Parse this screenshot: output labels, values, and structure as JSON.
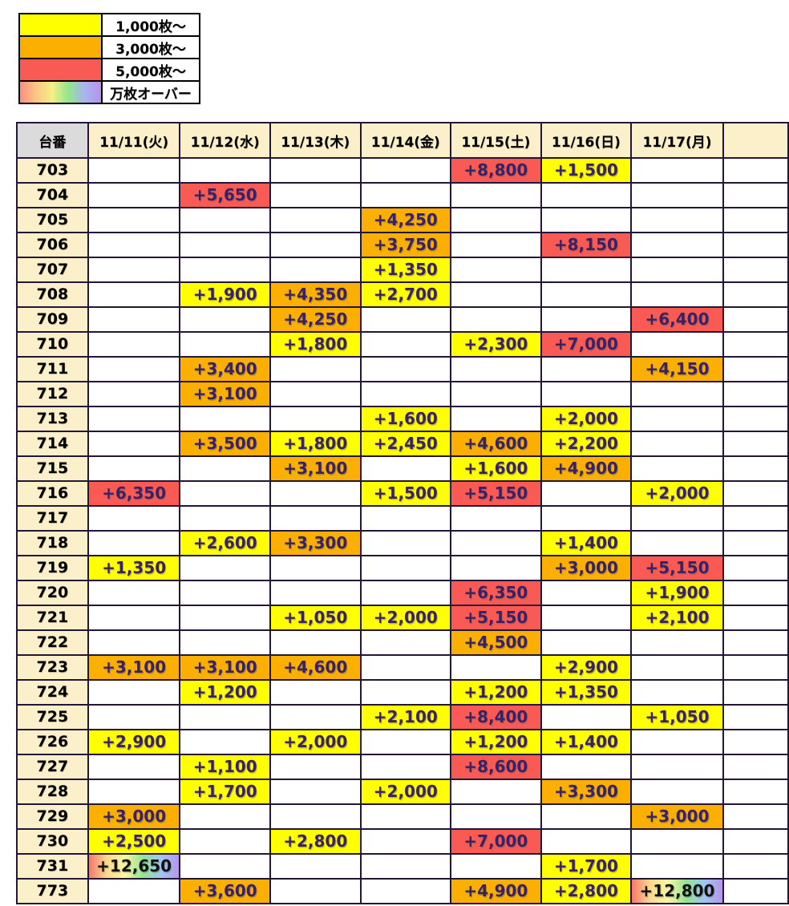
{
  "colors": {
    "tier_1000": "#ffff00",
    "tier_3000": "#fbaf00",
    "tier_5000": "#fa5a54",
    "rainbow_stops": [
      "#f8776d",
      "#fbd98d",
      "#f9f7a0",
      "#93e493",
      "#9ec7f2",
      "#b795ea"
    ],
    "header_cream": "#fcf0cb",
    "machine_header_gray": "#dbdbdb",
    "value_text": "#3a2163",
    "grid_border": "#241636"
  },
  "chart_data": {
    "type": "table",
    "legend": [
      {
        "label": "1,000枚〜",
        "tier": "1000",
        "color": "#ffff00"
      },
      {
        "label": "3,000枚〜",
        "tier": "3000",
        "color": "#fbaf00"
      },
      {
        "label": "5,000枚〜",
        "tier": "5000",
        "color": "#fa5a54"
      },
      {
        "label": "万枚オーバー",
        "tier": "10000",
        "color": "rainbow"
      }
    ],
    "columns": [
      "台番",
      "11/11(火)",
      "11/12(水)",
      "11/13(木)",
      "11/14(金)",
      "11/15(土)",
      "11/16(日)",
      "11/17(月)"
    ],
    "rows": [
      {
        "machine": "703",
        "values": [
          null,
          null,
          null,
          null,
          {
            "v": "+8,800",
            "l": "5000"
          },
          {
            "v": "+1,500",
            "l": "1000"
          },
          null
        ]
      },
      {
        "machine": "704",
        "values": [
          null,
          {
            "v": "+5,650",
            "l": "5000"
          },
          null,
          null,
          null,
          null,
          null
        ]
      },
      {
        "machine": "705",
        "values": [
          null,
          null,
          null,
          {
            "v": "+4,250",
            "l": "3000"
          },
          null,
          null,
          null
        ]
      },
      {
        "machine": "706",
        "values": [
          null,
          null,
          null,
          {
            "v": "+3,750",
            "l": "3000"
          },
          null,
          {
            "v": "+8,150",
            "l": "5000"
          },
          null
        ]
      },
      {
        "machine": "707",
        "values": [
          null,
          null,
          null,
          {
            "v": "+1,350",
            "l": "1000"
          },
          null,
          null,
          null
        ]
      },
      {
        "machine": "708",
        "values": [
          null,
          {
            "v": "+1,900",
            "l": "1000"
          },
          {
            "v": "+4,350",
            "l": "3000"
          },
          {
            "v": "+2,700",
            "l": "1000"
          },
          null,
          null,
          null
        ]
      },
      {
        "machine": "709",
        "values": [
          null,
          null,
          {
            "v": "+4,250",
            "l": "3000"
          },
          null,
          null,
          null,
          {
            "v": "+6,400",
            "l": "5000"
          }
        ]
      },
      {
        "machine": "710",
        "values": [
          null,
          null,
          {
            "v": "+1,800",
            "l": "1000"
          },
          null,
          {
            "v": "+2,300",
            "l": "1000"
          },
          {
            "v": "+7,000",
            "l": "5000"
          },
          null
        ]
      },
      {
        "machine": "711",
        "values": [
          null,
          {
            "v": "+3,400",
            "l": "3000"
          },
          null,
          null,
          null,
          null,
          {
            "v": "+4,150",
            "l": "3000"
          }
        ]
      },
      {
        "machine": "712",
        "values": [
          null,
          {
            "v": "+3,100",
            "l": "3000"
          },
          null,
          null,
          null,
          null,
          null
        ]
      },
      {
        "machine": "713",
        "values": [
          null,
          null,
          null,
          {
            "v": "+1,600",
            "l": "1000"
          },
          null,
          {
            "v": "+2,000",
            "l": "1000"
          },
          null
        ]
      },
      {
        "machine": "714",
        "values": [
          null,
          {
            "v": "+3,500",
            "l": "3000"
          },
          {
            "v": "+1,800",
            "l": "1000"
          },
          {
            "v": "+2,450",
            "l": "1000"
          },
          {
            "v": "+4,600",
            "l": "3000"
          },
          {
            "v": "+2,200",
            "l": "1000"
          },
          null
        ]
      },
      {
        "machine": "715",
        "values": [
          null,
          null,
          {
            "v": "+3,100",
            "l": "3000"
          },
          null,
          {
            "v": "+1,600",
            "l": "1000"
          },
          {
            "v": "+4,900",
            "l": "3000"
          },
          null
        ]
      },
      {
        "machine": "716",
        "values": [
          {
            "v": "+6,350",
            "l": "5000"
          },
          null,
          null,
          {
            "v": "+1,500",
            "l": "1000"
          },
          {
            "v": "+5,150",
            "l": "5000"
          },
          null,
          {
            "v": "+2,000",
            "l": "1000"
          }
        ]
      },
      {
        "machine": "717",
        "values": [
          null,
          null,
          null,
          null,
          null,
          null,
          null
        ]
      },
      {
        "machine": "718",
        "values": [
          null,
          {
            "v": "+2,600",
            "l": "1000"
          },
          {
            "v": "+3,300",
            "l": "3000"
          },
          null,
          null,
          {
            "v": "+1,400",
            "l": "1000"
          },
          null
        ]
      },
      {
        "machine": "719",
        "values": [
          {
            "v": "+1,350",
            "l": "1000"
          },
          null,
          null,
          null,
          null,
          {
            "v": "+3,000",
            "l": "3000"
          },
          {
            "v": "+5,150",
            "l": "5000"
          }
        ]
      },
      {
        "machine": "720",
        "values": [
          null,
          null,
          null,
          null,
          {
            "v": "+6,350",
            "l": "5000"
          },
          null,
          {
            "v": "+1,900",
            "l": "1000"
          }
        ]
      },
      {
        "machine": "721",
        "values": [
          null,
          null,
          {
            "v": "+1,050",
            "l": "1000"
          },
          {
            "v": "+2,000",
            "l": "1000"
          },
          {
            "v": "+5,150",
            "l": "5000"
          },
          null,
          {
            "v": "+2,100",
            "l": "1000"
          }
        ]
      },
      {
        "machine": "722",
        "values": [
          null,
          null,
          null,
          null,
          {
            "v": "+4,500",
            "l": "3000"
          },
          null,
          null
        ]
      },
      {
        "machine": "723",
        "values": [
          {
            "v": "+3,100",
            "l": "3000"
          },
          {
            "v": "+3,100",
            "l": "3000"
          },
          {
            "v": "+4,600",
            "l": "3000"
          },
          null,
          null,
          {
            "v": "+2,900",
            "l": "1000"
          },
          null
        ]
      },
      {
        "machine": "724",
        "values": [
          null,
          {
            "v": "+1,200",
            "l": "1000"
          },
          null,
          null,
          {
            "v": "+1,200",
            "l": "1000"
          },
          {
            "v": "+1,350",
            "l": "1000"
          },
          null
        ]
      },
      {
        "machine": "725",
        "values": [
          null,
          null,
          null,
          {
            "v": "+2,100",
            "l": "1000"
          },
          {
            "v": "+8,400",
            "l": "5000"
          },
          null,
          {
            "v": "+1,050",
            "l": "1000"
          }
        ]
      },
      {
        "machine": "726",
        "values": [
          {
            "v": "+2,900",
            "l": "1000"
          },
          null,
          {
            "v": "+2,000",
            "l": "1000"
          },
          null,
          {
            "v": "+1,200",
            "l": "1000"
          },
          {
            "v": "+1,400",
            "l": "1000"
          },
          null
        ]
      },
      {
        "machine": "727",
        "values": [
          null,
          {
            "v": "+1,100",
            "l": "1000"
          },
          null,
          null,
          {
            "v": "+8,600",
            "l": "5000"
          },
          null,
          null
        ]
      },
      {
        "machine": "728",
        "values": [
          null,
          {
            "v": "+1,700",
            "l": "1000"
          },
          null,
          {
            "v": "+2,000",
            "l": "1000"
          },
          null,
          {
            "v": "+3,300",
            "l": "3000"
          },
          null
        ]
      },
      {
        "machine": "729",
        "values": [
          {
            "v": "+3,000",
            "l": "3000"
          },
          null,
          null,
          null,
          null,
          null,
          {
            "v": "+3,000",
            "l": "3000"
          }
        ]
      },
      {
        "machine": "730",
        "values": [
          {
            "v": "+2,500",
            "l": "1000"
          },
          null,
          {
            "v": "+2,800",
            "l": "1000"
          },
          null,
          {
            "v": "+7,000",
            "l": "5000"
          },
          null,
          null
        ]
      },
      {
        "machine": "731",
        "values": [
          {
            "v": "+12,650",
            "l": "10000"
          },
          null,
          null,
          null,
          null,
          {
            "v": "+1,700",
            "l": "1000"
          },
          null
        ]
      },
      {
        "machine": "773",
        "values": [
          null,
          {
            "v": "+3,600",
            "l": "3000"
          },
          null,
          null,
          {
            "v": "+4,900",
            "l": "3000"
          },
          {
            "v": "+2,800",
            "l": "1000"
          },
          {
            "v": "+12,800",
            "l": "10000"
          }
        ]
      }
    ]
  }
}
